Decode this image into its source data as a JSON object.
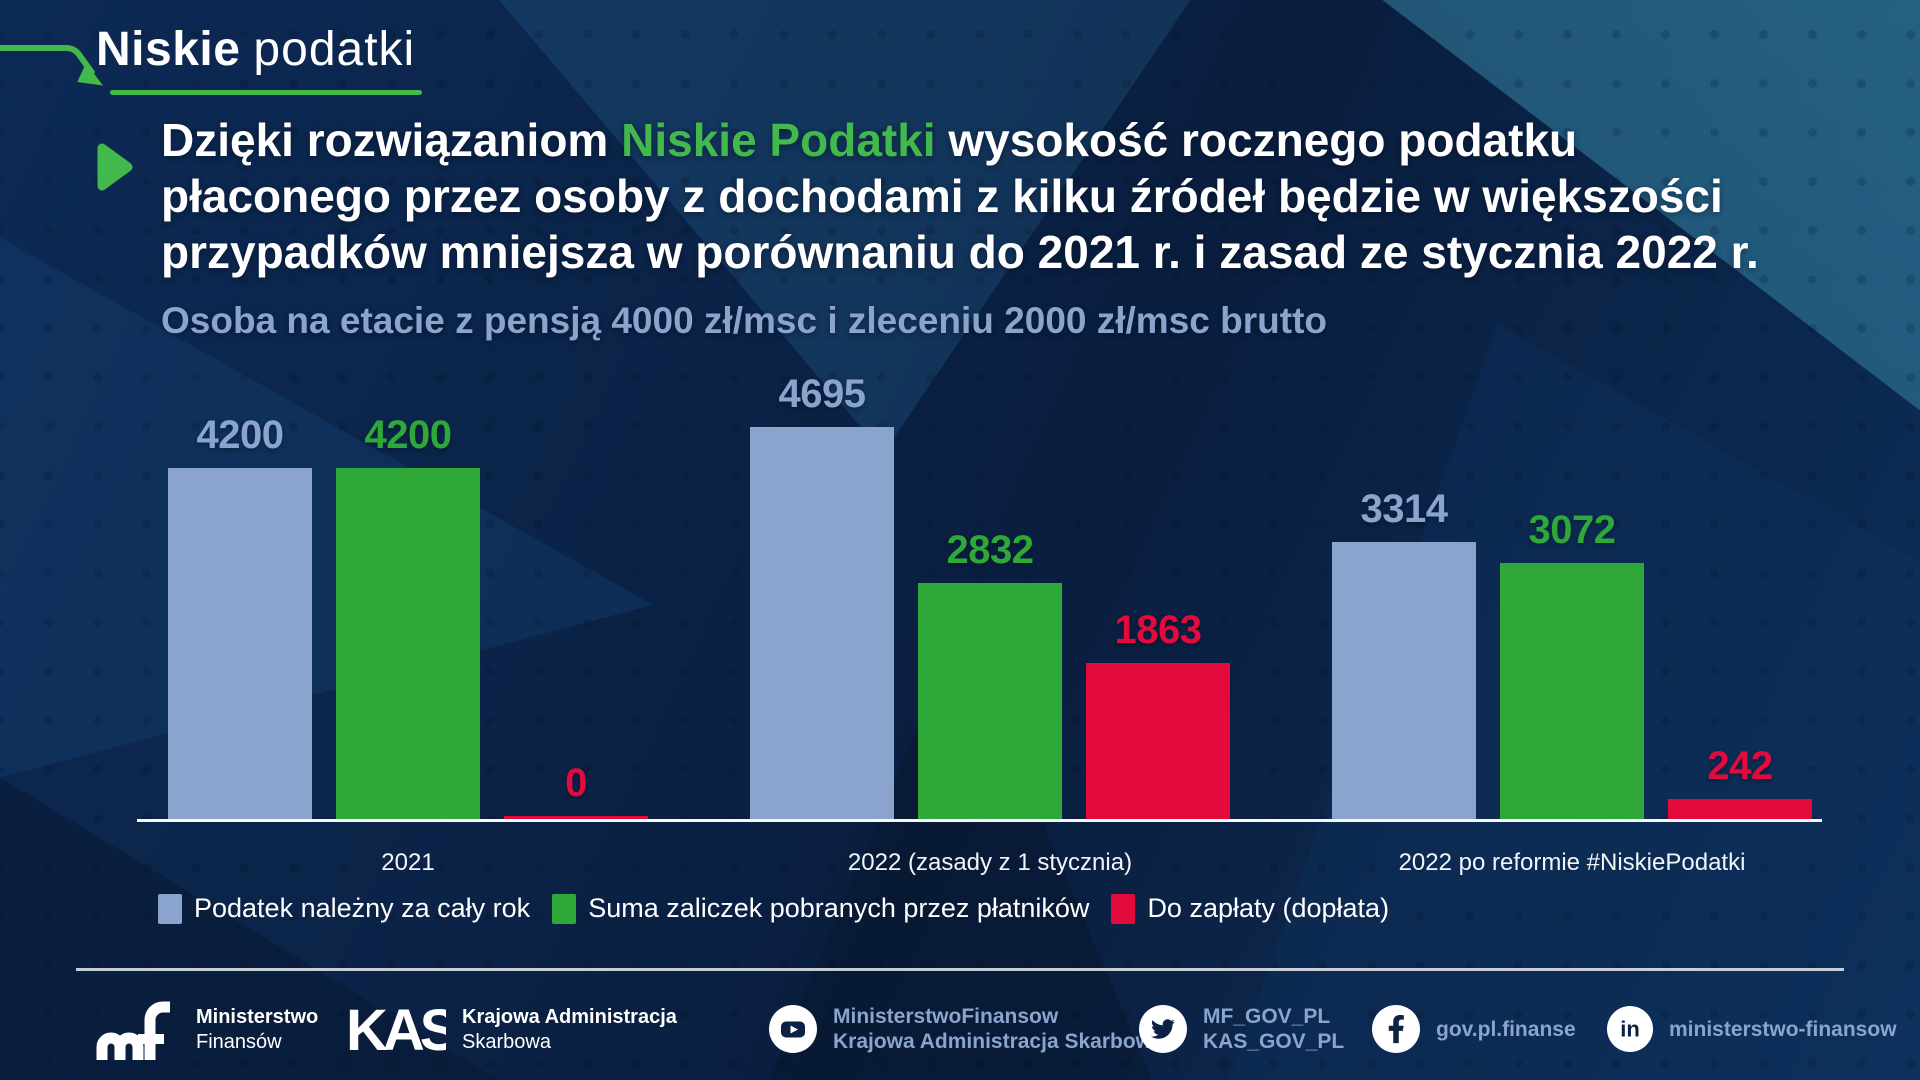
{
  "colors": {
    "navy": "#0b2245",
    "slate": "#8aa4ce",
    "green": "#2fa83a",
    "brandgreen": "#41b94c",
    "red": "#e30a3c",
    "axis": "#f5f7fa"
  },
  "header": {
    "logo_bold": "Niskie",
    "logo_light": "podatki"
  },
  "headline": {
    "line1_pre": "Dzięki rozwiązaniom ",
    "line1_highlight": "Niskie Podatki",
    "line1_post": " wysokość rocznego podatku",
    "line2": "płaconego przez osoby z dochodami z kilku źródeł będzie w większości",
    "line3": "przypadków mniejsza w porównaniu do 2021 r. i zasad ze stycznia 2022 r."
  },
  "chart_data": {
    "type": "bar",
    "title": "Osoba na etacie z pensją 4000 zł/msc i zleceniu 2000 zł/msc brutto",
    "categories": [
      "2021",
      "2022 (zasady z 1 stycznia)",
      "2022 po reformie #NiskiePodatki"
    ],
    "series": [
      {
        "name": "Podatek należny za cały rok",
        "color": "#8aa4ce",
        "values": [
          4200,
          4695,
          3314
        ]
      },
      {
        "name": "Suma zaliczek pobranych przez płatników",
        "color": "#2fa83a",
        "values": [
          4200,
          2832,
          3072
        ]
      },
      {
        "name": "Do zapłaty (dopłata)",
        "color": "#e30a3c",
        "values": [
          0,
          1863,
          242
        ]
      }
    ],
    "ylim": [
      0,
      4695
    ],
    "grid": false,
    "legend_position": "bottom",
    "value_labels": true
  },
  "footer": {
    "mf_line1": "Ministerstwo",
    "mf_line2": "Finansów",
    "kas_line1": "Krajowa Administracja",
    "kas_line2": "Skarbowa",
    "youtube_line1": "MinisterstwoFinansow",
    "youtube_line2": "Krajowa Administracja Skarbowa",
    "twitter_line1": "MF_GOV_PL",
    "twitter_line2": "KAS_GOV_PL",
    "facebook": "gov.pl.finanse",
    "linkedin": "ministerstwo-finansow"
  }
}
